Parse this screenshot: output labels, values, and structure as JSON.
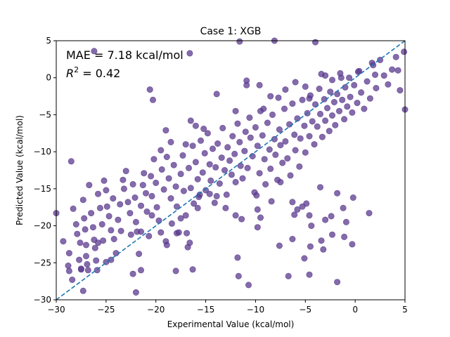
{
  "chart_data": {
    "type": "scatter",
    "title": "Case 1: XGB",
    "xlabel": "Experimental Value (kcal/mol)",
    "ylabel": "Predicted Value (kcal/mol)",
    "xlim": [
      -30,
      5
    ],
    "ylim": [
      -30,
      5
    ],
    "xticks": [
      -30,
      -25,
      -20,
      -15,
      -10,
      -5,
      0,
      5
    ],
    "yticks": [
      -30,
      -25,
      -20,
      -15,
      -10,
      -5,
      0,
      5
    ],
    "xtick_labels": [
      "−30",
      "−25",
      "−20",
      "−15",
      "−10",
      "−5",
      "0",
      "5"
    ],
    "ytick_labels": [
      "−30",
      "−25",
      "−20",
      "−15",
      "−10",
      "−5",
      "0",
      "5"
    ],
    "annotation_mae": "MAE = 7.18 kcal/mol",
    "annotation_r2_symbol": "R",
    "annotation_r2_exp": "2",
    "annotation_r2_value": " = 0.42",
    "point_color": "#5b3a8e",
    "line_color": "#1f77b4",
    "reference_line": {
      "from": [
        -30,
        -30
      ],
      "to": [
        5,
        5
      ]
    },
    "points": [
      [
        -30,
        -18.3
      ],
      [
        -29.3,
        -22.1
      ],
      [
        -28.8,
        -25.4
      ],
      [
        -28.7,
        -26.1
      ],
      [
        -28.7,
        -23.7
      ],
      [
        -28.4,
        -27.3
      ],
      [
        -28.5,
        -11.3
      ],
      [
        -28.3,
        -17.7
      ],
      [
        -28.0,
        -19.8
      ],
      [
        -27.9,
        -21.1
      ],
      [
        -27.6,
        -22.3
      ],
      [
        -27.7,
        -24.6
      ],
      [
        -27.5,
        -25.8
      ],
      [
        -27.3,
        -16.5
      ],
      [
        -27.2,
        -19.0
      ],
      [
        -27.1,
        -20.5
      ],
      [
        -27.0,
        -22.6
      ],
      [
        -27.0,
        -24.1
      ],
      [
        -26.9,
        -25.2
      ],
      [
        -26.8,
        -26.0
      ],
      [
        -26.7,
        -14.5
      ],
      [
        -26.5,
        -18.3
      ],
      [
        -26.3,
        -20.2
      ],
      [
        -26.2,
        -21.9
      ],
      [
        -26.1,
        -23.0
      ],
      [
        -26.0,
        -24.7
      ],
      [
        -25.9,
        -26.0
      ],
      [
        -25.8,
        -15.7
      ],
      [
        -25.6,
        -17.6
      ],
      [
        -25.4,
        -19.8
      ],
      [
        -25.3,
        -22.0
      ],
      [
        -25.2,
        -13.9
      ],
      [
        -25.0,
        -15.2
      ],
      [
        -24.9,
        -17.4
      ],
      [
        -24.7,
        -18.7
      ],
      [
        -24.5,
        -20.6
      ],
      [
        -24.3,
        -16.3
      ],
      [
        -24.2,
        -21.8
      ],
      [
        -24.0,
        -23.7
      ],
      [
        -23.8,
        -19.2
      ],
      [
        -23.6,
        -17.1
      ],
      [
        -23.5,
        -20.7
      ],
      [
        -23.3,
        -13.8
      ],
      [
        -23.2,
        -15.0
      ],
      [
        -23.0,
        -12.6
      ],
      [
        -22.8,
        -16.8
      ],
      [
        -22.6,
        -18.3
      ],
      [
        -22.5,
        -21.2
      ],
      [
        -22.3,
        -14.4
      ],
      [
        -22.1,
        -16.2
      ],
      [
        -22.0,
        -19.5
      ],
      [
        -21.9,
        -20.8
      ],
      [
        -21.7,
        -23.8
      ],
      [
        -21.5,
        -17.3
      ],
      [
        -21.3,
        -14.5
      ],
      [
        -21.2,
        -12.9
      ],
      [
        -21.0,
        -15.6
      ],
      [
        -20.9,
        -18.1
      ],
      [
        -20.7,
        -21.4
      ],
      [
        -20.5,
        -13.3
      ],
      [
        -20.4,
        -16.0
      ],
      [
        -20.2,
        -11.0
      ],
      [
        -20.0,
        -14.2
      ],
      [
        -19.9,
        -17.5
      ],
      [
        -19.7,
        -19.3
      ],
      [
        -19.5,
        -9.8
      ],
      [
        -19.4,
        -12.4
      ],
      [
        -19.2,
        -15.1
      ],
      [
        -19.0,
        -22.1
      ],
      [
        -18.9,
        -10.7
      ],
      [
        -18.7,
        -13.6
      ],
      [
        -18.5,
        -16.3
      ],
      [
        -18.4,
        -19.7
      ],
      [
        -18.2,
        -11.8
      ],
      [
        -18.0,
        -14.7
      ],
      [
        -17.9,
        -17.4
      ],
      [
        -17.7,
        -20.9
      ],
      [
        -17.5,
        -13.0
      ],
      [
        -17.3,
        -10.5
      ],
      [
        -17.2,
        -15.3
      ],
      [
        -17.0,
        -18.6
      ],
      [
        -16.9,
        -21.0
      ],
      [
        -16.7,
        -12.2
      ],
      [
        -16.5,
        -14.9
      ],
      [
        -16.3,
        -9.2
      ],
      [
        -16.2,
        -17.0
      ],
      [
        -16.0,
        -11.4
      ],
      [
        -15.8,
        -13.7
      ],
      [
        -15.7,
        -16.1
      ],
      [
        -15.5,
        -8.5
      ],
      [
        -15.3,
        -12.8
      ],
      [
        -15.1,
        -10.2
      ],
      [
        -15.0,
        -15.2
      ],
      [
        -14.8,
        -7.5
      ],
      [
        -14.6,
        -11.7
      ],
      [
        -14.5,
        -13.9
      ],
      [
        -14.3,
        -9.6
      ],
      [
        -14.1,
        -16.9
      ],
      [
        -14.0,
        -12.1
      ],
      [
        -13.8,
        -8.9
      ],
      [
        -13.6,
        -14.3
      ],
      [
        -13.4,
        -10.8
      ],
      [
        -13.3,
        -6.8
      ],
      [
        -13.1,
        -12.5
      ],
      [
        -12.9,
        -15.8
      ],
      [
        -12.8,
        -9.4
      ],
      [
        -12.6,
        -11.2
      ],
      [
        -12.4,
        -13.1
      ],
      [
        -12.3,
        -7.9
      ],
      [
        -12.1,
        -10.3
      ],
      [
        -12.0,
        -14.1
      ],
      [
        -11.8,
        -6.2
      ],
      [
        -11.6,
        -8.7
      ],
      [
        -11.5,
        -11.9
      ],
      [
        -11.3,
        -13.6
      ],
      [
        -11.1,
        -9.9
      ],
      [
        -11.0,
        -7.3
      ],
      [
        -10.8,
        -12.2
      ],
      [
        -10.6,
        -5.4
      ],
      [
        -10.5,
        -8.1
      ],
      [
        -10.3,
        -10.6
      ],
      [
        -10.1,
        -15.5
      ],
      [
        -10.0,
        -6.7
      ],
      [
        -9.8,
        -9.2
      ],
      [
        -9.6,
        -12.9
      ],
      [
        -9.5,
        -4.5
      ],
      [
        -9.3,
        -7.8
      ],
      [
        -9.1,
        -11.0
      ],
      [
        -9.0,
        -14.4
      ],
      [
        -8.8,
        -6.1
      ],
      [
        -8.6,
        -9.7
      ],
      [
        -8.5,
        -12.3
      ],
      [
        -8.3,
        -5.0
      ],
      [
        -8.1,
        -8.3
      ],
      [
        -8.0,
        -10.4
      ],
      [
        -7.8,
        -13.8
      ],
      [
        -7.6,
        -7.0
      ],
      [
        -7.5,
        -9.1
      ],
      [
        -7.3,
        -11.5
      ],
      [
        -7.1,
        -4.2
      ],
      [
        -7.0,
        -8.6
      ],
      [
        -6.8,
        -10.9
      ],
      [
        -6.6,
        -6.3
      ],
      [
        -6.5,
        -13.2
      ],
      [
        -6.3,
        -3.5
      ],
      [
        -6.1,
        -7.7
      ],
      [
        -6.0,
        -9.8
      ],
      [
        -5.8,
        -5.5
      ],
      [
        -5.6,
        -12.0
      ],
      [
        -5.5,
        -8.2
      ],
      [
        -5.3,
        -3.0
      ],
      [
        -5.1,
        -6.5
      ],
      [
        -5.0,
        -10.1
      ],
      [
        -4.8,
        -4.8
      ],
      [
        -4.6,
        -7.9
      ],
      [
        -4.5,
        -2.4
      ],
      [
        -4.3,
        -5.9
      ],
      [
        -4.1,
        -9.0
      ],
      [
        -4.0,
        -3.6
      ],
      [
        -3.8,
        -6.6
      ],
      [
        -3.6,
        -1.5
      ],
      [
        -3.5,
        -4.9
      ],
      [
        -3.3,
        -8.0
      ],
      [
        -3.1,
        -2.9
      ],
      [
        -3.0,
        -5.8
      ],
      [
        -2.8,
        -4.1
      ],
      [
        -2.6,
        -7.2
      ],
      [
        -2.5,
        -1.9
      ],
      [
        -2.3,
        -5.1
      ],
      [
        -2.1,
        -3.3
      ],
      [
        -2.0,
        -6.4
      ],
      [
        -1.8,
        -2.2
      ],
      [
        -1.6,
        -4.5
      ],
      [
        -1.5,
        0.6
      ],
      [
        -1.3,
        -3.0
      ],
      [
        -1.1,
        -5.6
      ],
      [
        -1.0,
        -1.3
      ],
      [
        -0.8,
        -3.9
      ],
      [
        -0.6,
        0.0
      ],
      [
        -0.5,
        -2.6
      ],
      [
        -0.3,
        -4.7
      ],
      [
        -0.1,
        -1.0
      ],
      [
        0.2,
        -3.4
      ],
      [
        0.4,
        0.9
      ],
      [
        0.6,
        -2.0
      ],
      [
        0.9,
        -4.2
      ],
      [
        1.2,
        -0.5
      ],
      [
        1.5,
        -2.8
      ],
      [
        1.8,
        1.7
      ],
      [
        2.1,
        -1.4
      ],
      [
        2.5,
        2.4
      ],
      [
        2.9,
        0.3
      ],
      [
        3.3,
        -0.9
      ],
      [
        3.7,
        1.1
      ],
      [
        4.1,
        2.8
      ],
      [
        4.5,
        -1.7
      ],
      [
        4.9,
        3.5
      ],
      [
        -26.2,
        3.6
      ],
      [
        -16.6,
        3.3
      ],
      [
        -11.6,
        4.9
      ],
      [
        -8.1,
        5.0
      ],
      [
        -4.0,
        4.8
      ],
      [
        -20.3,
        -3.0
      ],
      [
        -20.6,
        -1.6
      ],
      [
        -16.5,
        -5.8
      ],
      [
        -13.9,
        -2.2
      ],
      [
        -10.9,
        -0.4
      ],
      [
        -10.9,
        -1.0
      ],
      [
        -9.6,
        -1.0
      ],
      [
        -8.5,
        -2.5
      ],
      [
        -7.0,
        -1.6
      ],
      [
        -6.0,
        -0.6
      ],
      [
        -3.4,
        0.5
      ],
      [
        -3.0,
        0.3
      ],
      [
        -2.3,
        -0.3
      ],
      [
        -1.4,
        0.0
      ],
      [
        0.3,
        0.8
      ],
      [
        1.7,
        2.0
      ],
      [
        2.0,
        0.4
      ],
      [
        4.3,
        1.0
      ],
      [
        5.0,
        -4.3
      ],
      [
        -19.0,
        -7.1
      ],
      [
        -18.5,
        -8.7
      ],
      [
        -17.0,
        -9.0
      ],
      [
        -16.0,
        -6.5
      ],
      [
        -15.2,
        -6.9
      ],
      [
        -12.0,
        -4.5
      ],
      [
        -9.2,
        -4.2
      ],
      [
        -7.7,
        -2.7
      ],
      [
        -5.0,
        -1.2
      ],
      [
        -4.6,
        -2.8
      ],
      [
        -9.9,
        -15.9
      ],
      [
        -8.4,
        -16.7
      ],
      [
        -7.5,
        -14.1
      ],
      [
        -6.1,
        -18.5
      ],
      [
        -5.8,
        -17.8
      ],
      [
        -5.3,
        -17.4
      ],
      [
        -4.9,
        -17.0
      ],
      [
        -4.6,
        -18.6
      ],
      [
        -4.4,
        -20.0
      ],
      [
        -3.5,
        -14.8
      ],
      [
        -3.0,
        -19.2
      ],
      [
        -2.4,
        -18.7
      ],
      [
        -1.8,
        -15.6
      ],
      [
        -1.2,
        -17.6
      ],
      [
        -0.9,
        -19.5
      ],
      [
        -0.2,
        -16.2
      ],
      [
        -9.5,
        -18.9
      ],
      [
        -9.8,
        -20.2
      ],
      [
        -7.6,
        -22.7
      ],
      [
        -6.3,
        -16.8
      ],
      [
        -6.3,
        -21.8
      ],
      [
        -5.1,
        -24.4
      ],
      [
        -4.6,
        -26.6
      ],
      [
        -4.5,
        -22.8
      ],
      [
        -3.4,
        -22.0
      ],
      [
        -3.2,
        -23.2
      ],
      [
        -2.3,
        -21.2
      ],
      [
        -1.8,
        -27.6
      ],
      [
        -1.1,
        -21.5
      ],
      [
        -0.3,
        -22.5
      ],
      [
        1.4,
        -18.3
      ],
      [
        -6.7,
        -26.8
      ],
      [
        -9.8,
        -17.8
      ],
      [
        -10.7,
        -28.0
      ],
      [
        -11.7,
        -26.8
      ],
      [
        -11.8,
        -24.3
      ],
      [
        -11.4,
        -19.1
      ],
      [
        -12.0,
        -18.6
      ],
      [
        -13.0,
        -17.6
      ],
      [
        -13.9,
        -16.0
      ],
      [
        -14.6,
        -15.7
      ],
      [
        -15.6,
        -15.8
      ],
      [
        -15.8,
        -17.6
      ],
      [
        -17.5,
        -19.0
      ],
      [
        -17.9,
        -21.0
      ],
      [
        -16.8,
        -22.9
      ],
      [
        -16.6,
        -22.3
      ],
      [
        -16.3,
        -25.9
      ],
      [
        -18.0,
        -26.1
      ],
      [
        -18.9,
        -22.6
      ],
      [
        -19.5,
        -20.9
      ],
      [
        -20.4,
        -18.6
      ],
      [
        -21.5,
        -20.8
      ],
      [
        -22.3,
        -26.5
      ],
      [
        -21.5,
        -26.0
      ],
      [
        -22.0,
        -29.0
      ],
      [
        -24.5,
        -24.6
      ],
      [
        -25.0,
        -24.9
      ],
      [
        -27.3,
        -28.8
      ],
      [
        -27.5,
        -25.9
      ],
      [
        -25.8,
        -22.3
      ]
    ]
  }
}
